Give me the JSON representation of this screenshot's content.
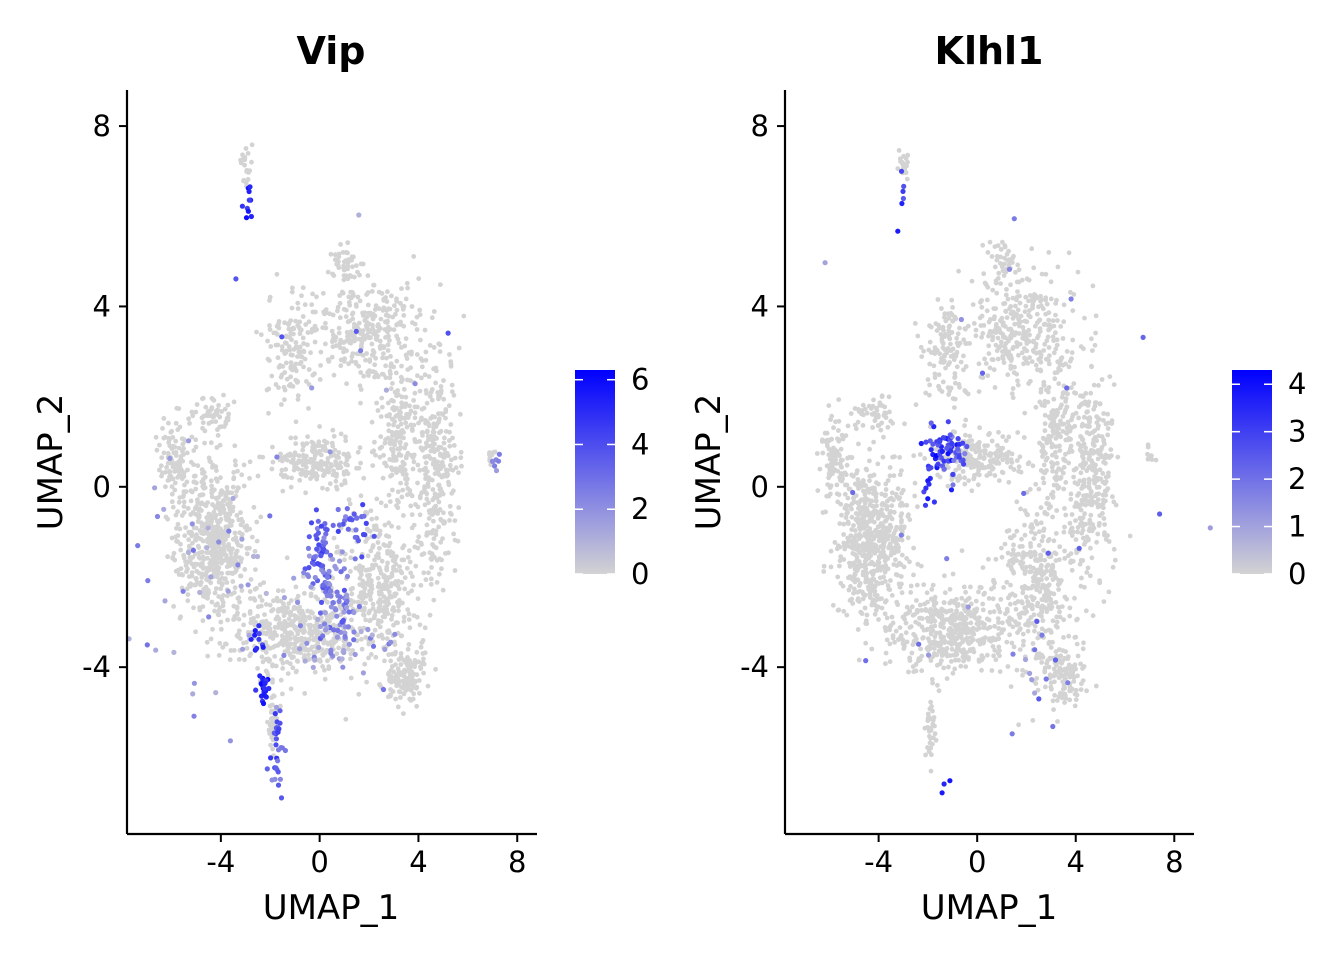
{
  "chart_data": [
    {
      "type": "scatter",
      "title": "Vip",
      "xlabel": "UMAP_1",
      "ylabel": "UMAP_2",
      "xlim": [
        -7.8,
        8.8
      ],
      "ylim": [
        -7.7,
        8.8
      ],
      "xticks": [
        "-4",
        "0",
        "4",
        "8"
      ],
      "yticks": [
        "-4",
        "0",
        "4",
        "8"
      ],
      "legend": {
        "position": "right",
        "min": 0,
        "max": 6.3,
        "ticks": [
          "0",
          "2",
          "4",
          "6"
        ],
        "low_color": "#d3d3d3",
        "high_color": "#0000ff"
      },
      "background_color": "#d3d3d3",
      "high_color": "#0000ff",
      "seed": 17,
      "hotspots": [
        {
          "x": -2.9,
          "y": 6.3,
          "sx": 0.1,
          "sy": 0.25,
          "n": 10,
          "expr": [
            3.5,
            6
          ]
        },
        {
          "x": 0,
          "y": -1.3,
          "sx": 0.3,
          "sy": 0.4,
          "n": 45,
          "expr": [
            2,
            4.5
          ]
        },
        {
          "x": 0.6,
          "y": -2.3,
          "sx": 0.6,
          "sy": 0.7,
          "n": 70,
          "expr": [
            1.5,
            4
          ]
        },
        {
          "x": 1.3,
          "y": -0.8,
          "sx": 0.5,
          "sy": 0.2,
          "n": 25,
          "expr": [
            2.5,
            4.5
          ]
        },
        {
          "x": 0.8,
          "y": -3.3,
          "sx": 1.0,
          "sy": 0.6,
          "n": 50,
          "expr": [
            1,
            3
          ]
        },
        {
          "x": -2.5,
          "y": -3.3,
          "sx": 0.15,
          "sy": 0.2,
          "n": 10,
          "expr": [
            4,
            6
          ]
        },
        {
          "x": -2.3,
          "y": -4.5,
          "sx": 0.15,
          "sy": 0.25,
          "n": 22,
          "expr": [
            4.5,
            6.3
          ]
        },
        {
          "x": -1.7,
          "y": -5.8,
          "sx": 0.18,
          "sy": 0.5,
          "n": 30,
          "expr": [
            2,
            5
          ]
        },
        {
          "x": 7.1,
          "y": 0.6,
          "sx": 0.1,
          "sy": 0.2,
          "n": 6,
          "expr": [
            1.5,
            3
          ]
        },
        {
          "x": -4,
          "y": -2,
          "sx": 2.2,
          "sy": 1.5,
          "n": 45,
          "expr": [
            0.8,
            3
          ]
        },
        {
          "x": 1,
          "y": 3,
          "sx": 2.5,
          "sy": 1.8,
          "n": 12,
          "expr": [
            1,
            4
          ]
        }
      ]
    },
    {
      "type": "scatter",
      "title": "Klhl1",
      "xlabel": "UMAP_1",
      "ylabel": "UMAP_2",
      "xlim": [
        -7.8,
        8.8
      ],
      "ylim": [
        -7.7,
        8.8
      ],
      "xticks": [
        "-4",
        "0",
        "4",
        "8"
      ],
      "yticks": [
        "-4",
        "0",
        "4",
        "8"
      ],
      "legend": {
        "position": "right",
        "min": 0,
        "max": 4.3,
        "ticks": [
          "0",
          "1",
          "2",
          "3",
          "4"
        ],
        "low_color": "#d3d3d3",
        "high_color": "#0000ff"
      },
      "background_color": "#d3d3d3",
      "high_color": "#0000ff",
      "seed": 29,
      "hotspots": [
        {
          "x": -1.3,
          "y": 0.8,
          "sx": 0.4,
          "sy": 0.3,
          "n": 55,
          "expr": [
            2,
            4.2
          ]
        },
        {
          "x": -1.9,
          "y": 0,
          "sx": 0.15,
          "sy": 0.35,
          "n": 12,
          "expr": [
            2.5,
            4
          ]
        },
        {
          "x": -0.7,
          "y": 0.7,
          "sx": 0.2,
          "sy": 0.2,
          "n": 12,
          "expr": [
            1.5,
            3
          ]
        },
        {
          "x": -3.1,
          "y": 6.5,
          "sx": 0.15,
          "sy": 0.5,
          "n": 6,
          "expr": [
            2,
            4
          ]
        },
        {
          "x": -1.3,
          "y": -6.4,
          "sx": 0.1,
          "sy": 0.15,
          "n": 3,
          "expr": [
            2.5,
            4
          ]
        },
        {
          "x": 2.6,
          "y": -3.7,
          "sx": 0.5,
          "sy": 0.5,
          "n": 12,
          "expr": [
            0.8,
            2.5
          ]
        },
        {
          "x": 0,
          "y": 0,
          "sx": 4,
          "sy": 3.2,
          "n": 25,
          "expr": [
            0.8,
            2.5
          ]
        }
      ]
    }
  ]
}
